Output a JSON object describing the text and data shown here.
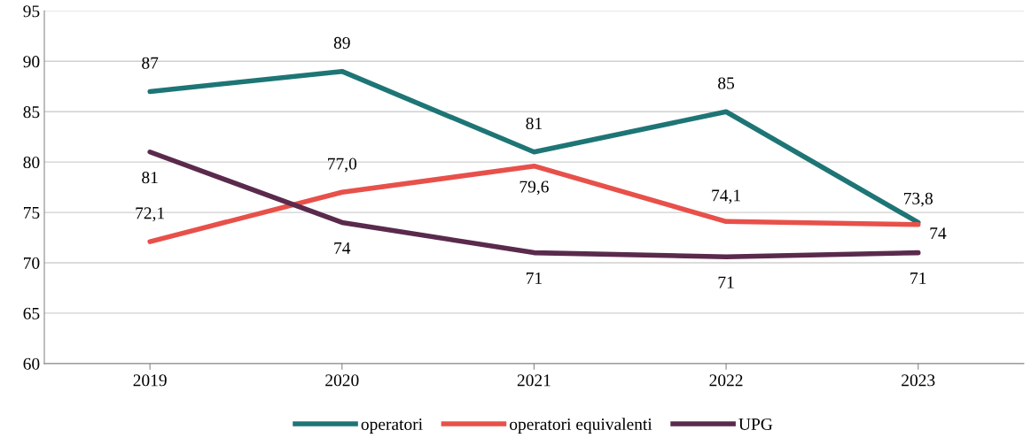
{
  "chart_data": {
    "type": "line",
    "categories": [
      "2019",
      "2020",
      "2021",
      "2022",
      "2023"
    ],
    "series": [
      {
        "name": "operatori",
        "color": "#1e7575",
        "values": [
          87,
          89,
          81,
          85,
          74
        ],
        "value_labels": [
          "87",
          "89",
          "81",
          "85",
          "74"
        ]
      },
      {
        "name": "operatori equivalenti",
        "color": "#e8504a",
        "values": [
          72.1,
          77.0,
          79.6,
          74.1,
          73.8
        ],
        "value_labels": [
          "72,1",
          "77,0",
          "79,6",
          "74,1",
          "73,8"
        ]
      },
      {
        "name": "UPG",
        "color": "#5a2a4c",
        "values": [
          81,
          74,
          71,
          70.6,
          71
        ],
        "value_labels": [
          "81",
          "74",
          "71",
          "71",
          "71"
        ]
      }
    ],
    "ylim": [
      60,
      95
    ],
    "yticks": [
      60,
      65,
      70,
      75,
      80,
      85,
      90,
      95
    ],
    "grid": "y",
    "legend": "bottom",
    "marker": "none",
    "line_style": "solid"
  }
}
